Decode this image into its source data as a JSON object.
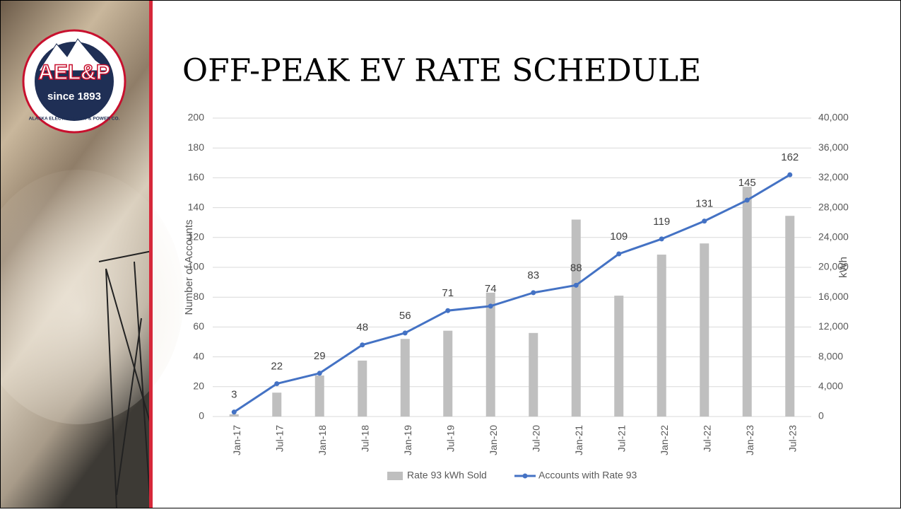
{
  "logo": {
    "name": "AEL&P",
    "since": "since 1893",
    "company": "ALASKA ELECTRIC LIGHT & POWER CO."
  },
  "chart_data": {
    "type": "bar-line",
    "title": "OFF-PEAK EV RATE SCHEDULE",
    "y_label": "Number of Accounts",
    "y2_label": "kWh",
    "categories": [
      "Jan-17",
      "Jul-17",
      "Jan-18",
      "Jul-18",
      "Jan-19",
      "Jul-19",
      "Jan-20",
      "Jul-20",
      "Jan-21",
      "Jul-21",
      "Jan-22",
      "Jul-22",
      "Jan-23",
      "Jul-23"
    ],
    "series": [
      {
        "name": "Rate 93 kWh Sold",
        "type": "bar",
        "axis": "y2",
        "color": "#bfbfbf",
        "values": [
          300,
          3200,
          5500,
          7500,
          10400,
          11500,
          16600,
          11200,
          26400,
          16200,
          21700,
          23200,
          30800,
          26900
        ]
      },
      {
        "name": "Accounts with Rate 93",
        "type": "line",
        "color": "#4472c4",
        "values": [
          3,
          22,
          29,
          48,
          56,
          71,
          74,
          83,
          88,
          109,
          119,
          131,
          145,
          162
        ]
      }
    ],
    "ylim": [
      0,
      200
    ],
    "yticks": [
      0,
      20,
      40,
      60,
      80,
      100,
      120,
      140,
      160,
      180,
      200
    ],
    "y2lim": [
      0,
      40000
    ],
    "y2ticks": [
      0,
      {
        "value": 4000,
        "label": "4,000"
      },
      {
        "value": 8000,
        "label": "8,000"
      },
      {
        "value": 12000,
        "label": "12,000"
      },
      {
        "value": 16000,
        "label": "16,000"
      },
      {
        "value": 20000,
        "label": "20,000"
      },
      {
        "value": 24000,
        "label": "24,000"
      },
      {
        "value": 28000,
        "label": "28,000"
      },
      {
        "value": 32000,
        "label": "32,000"
      },
      {
        "value": 36000,
        "label": "36,000"
      },
      {
        "value": 40000,
        "label": "40,000"
      }
    ],
    "grid": true,
    "legend": "bottom"
  }
}
